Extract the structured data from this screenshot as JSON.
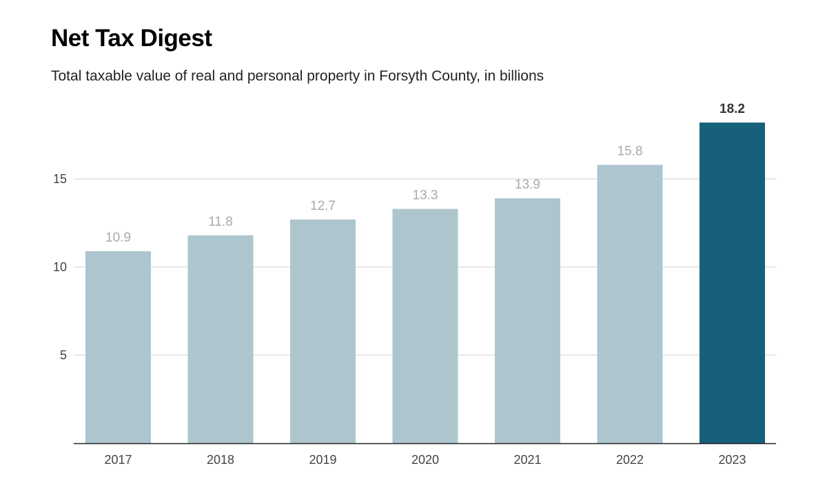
{
  "chart_data": {
    "type": "bar",
    "title": "Net Tax Digest",
    "subtitle": "Total taxable value of real and personal property in Forsyth County, in billions",
    "categories": [
      "2017",
      "2018",
      "2019",
      "2020",
      "2021",
      "2022",
      "2023"
    ],
    "values": [
      10.9,
      11.8,
      12.7,
      13.3,
      13.9,
      15.8,
      18.2
    ],
    "value_labels": [
      "10.9",
      "11.8",
      "12.7",
      "13.3",
      "13.9",
      "15.8",
      "18.2"
    ],
    "highlight_index": 6,
    "ylim": [
      0,
      19.5
    ],
    "yticks": [
      5,
      10,
      15
    ],
    "ytick_labels": [
      "5",
      "10",
      "15"
    ],
    "grid": true,
    "xlabel": "",
    "ylabel": "",
    "colors": {
      "bar": "#adc6ce",
      "highlight": "#16607a",
      "grid": "#d0d0d0",
      "axis": "#222222"
    }
  }
}
